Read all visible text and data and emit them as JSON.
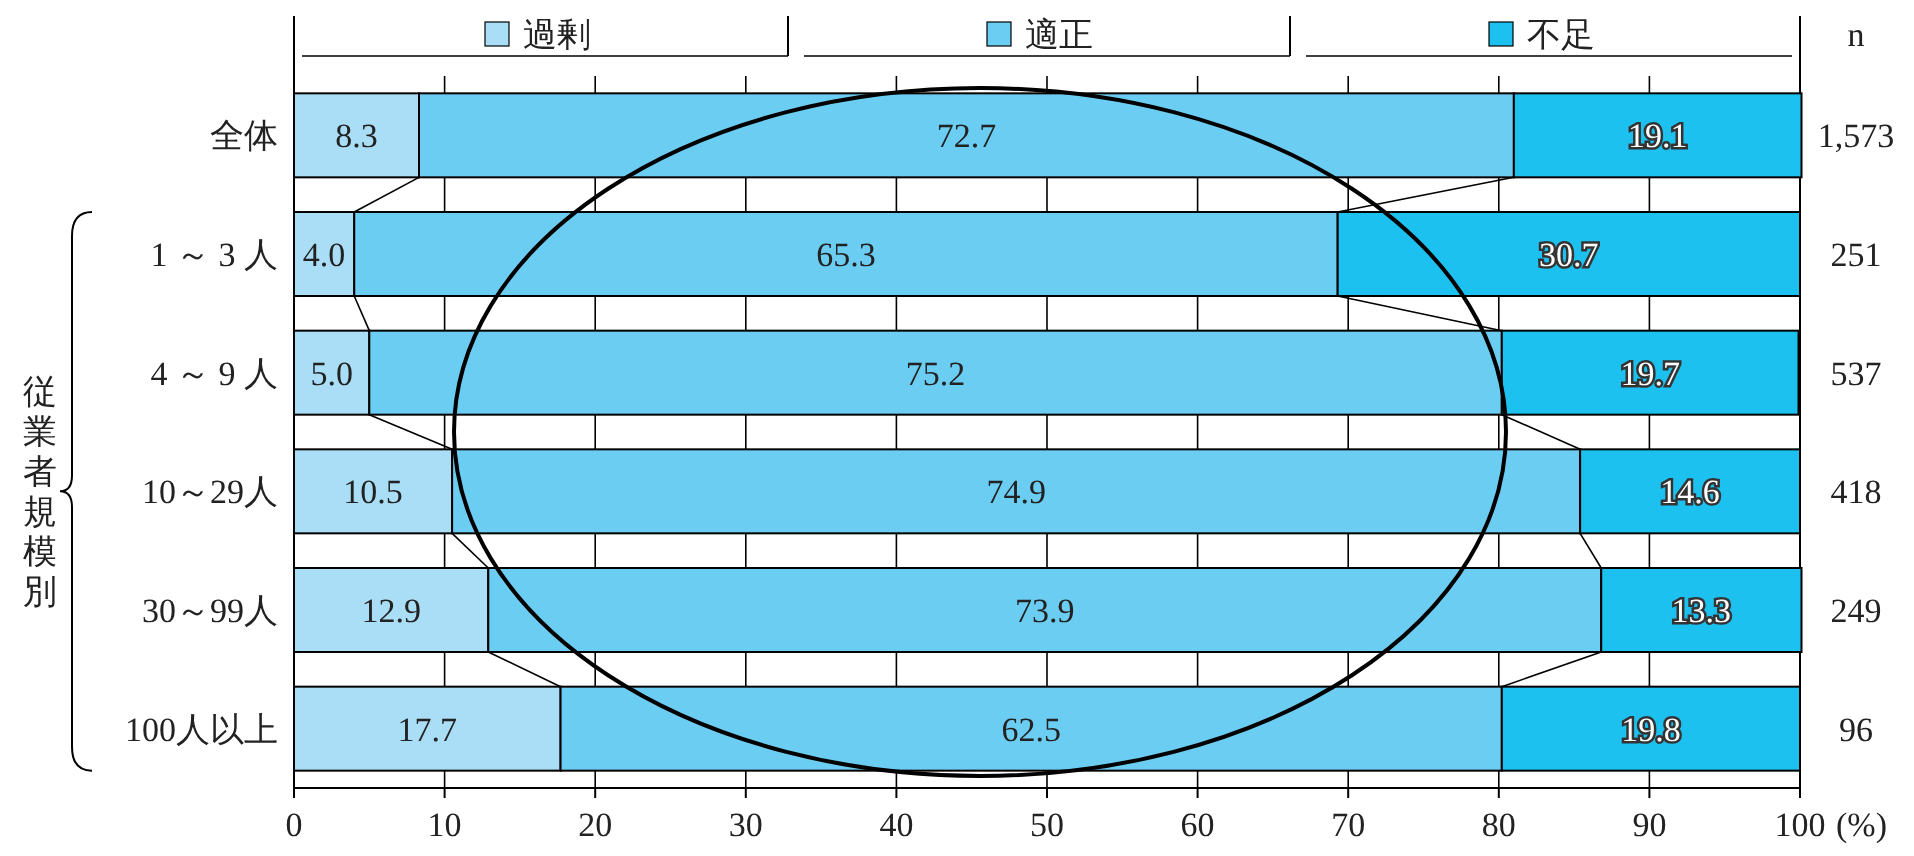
{
  "chart_data": {
    "type": "bar",
    "orientation": "horizontal",
    "stacked": true,
    "grid": "x",
    "legend": "top",
    "categories": [
      "全体",
      "1 ～ 3 人",
      "4 ～ 9 人",
      "10～29人",
      "30～99人",
      "100人以上"
    ],
    "series": [
      {
        "name": "過剰",
        "color": "#a9def6",
        "values": [
          8.3,
          4.0,
          5.0,
          10.5,
          12.9,
          17.7
        ],
        "value_labels": [
          "8.3",
          "4.0",
          "5.0",
          "10.5",
          "12.9",
          "17.7"
        ]
      },
      {
        "name": "適正",
        "color": "#6ccdf3",
        "values": [
          72.7,
          65.3,
          75.2,
          74.9,
          73.9,
          62.5
        ],
        "value_labels": [
          "72.7",
          "65.3",
          "75.2",
          "74.9",
          "73.9",
          "62.5"
        ]
      },
      {
        "name": "不足",
        "color": "#1dc1f0",
        "values": [
          19.1,
          30.7,
          19.7,
          14.6,
          13.3,
          19.8
        ],
        "value_labels": [
          "19.1",
          "30.7",
          "19.7",
          "14.6",
          "13.3",
          "19.8"
        ]
      }
    ],
    "xlim": [
      0,
      100
    ],
    "xticks": [
      0,
      10,
      20,
      30,
      40,
      50,
      60,
      70,
      80,
      90,
      100
    ],
    "xlabel": "(%)",
    "ylabel": "従業者規模別",
    "annotations": [
      "n",
      "1,573",
      "251",
      "537",
      "418",
      "249",
      "96"
    ]
  }
}
